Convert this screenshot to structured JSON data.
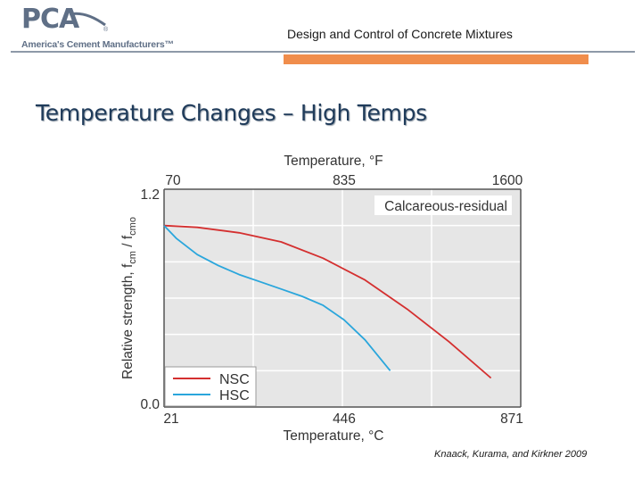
{
  "logo": {
    "mark": "PCA",
    "registered": "®",
    "tagline": "America's Cement Manufacturers™"
  },
  "header": {
    "deck_title": "Design and Control of Concrete Mixtures"
  },
  "slide": {
    "title": "Temperature Changes – High Temps",
    "citation": "Knaack, Kurama, and Kirkner 2009"
  },
  "colors": {
    "nsc": "#d42f2f",
    "hsc": "#2aa6dc",
    "title": "#1f3b5a",
    "accent_bar": "#f08d4c",
    "rule": "#8e99a8"
  },
  "chart_data": {
    "type": "line",
    "title": "",
    "annotation": "Calcareous-residual",
    "xlabel": "Temperature, °C",
    "x2label": "Temperature, °F",
    "ylabel_prefix": "Relative strength, f",
    "ylabel_sub1": "cm",
    "ylabel_mid": " / f",
    "ylabel_sub2": "cmo",
    "xlim": [
      21,
      871
    ],
    "ylim": [
      0,
      1.2
    ],
    "x_ticks": [
      21,
      446,
      871
    ],
    "x_tick_labels": [
      "21",
      "446",
      "871"
    ],
    "x2_tick_labels": [
      "70",
      "835",
      "1600"
    ],
    "y_ticks": [
      0,
      1.2
    ],
    "y_tick_labels": [
      "0.0",
      "1.2"
    ],
    "grid": true,
    "legend_position": "bottom-left",
    "series": [
      {
        "name": "NSC",
        "color": "#d42f2f",
        "x": [
          21,
          100,
          200,
          300,
          400,
          500,
          600,
          700,
          800
        ],
        "y": [
          1.0,
          0.99,
          0.96,
          0.91,
          0.82,
          0.7,
          0.54,
          0.36,
          0.16
        ]
      },
      {
        "name": "HSC",
        "color": "#2aa6dc",
        "x": [
          21,
          50,
          100,
          150,
          200,
          250,
          300,
          350,
          400,
          450,
          500,
          560
        ],
        "y": [
          1.0,
          0.93,
          0.84,
          0.78,
          0.73,
          0.69,
          0.65,
          0.61,
          0.56,
          0.48,
          0.37,
          0.2
        ]
      }
    ]
  }
}
